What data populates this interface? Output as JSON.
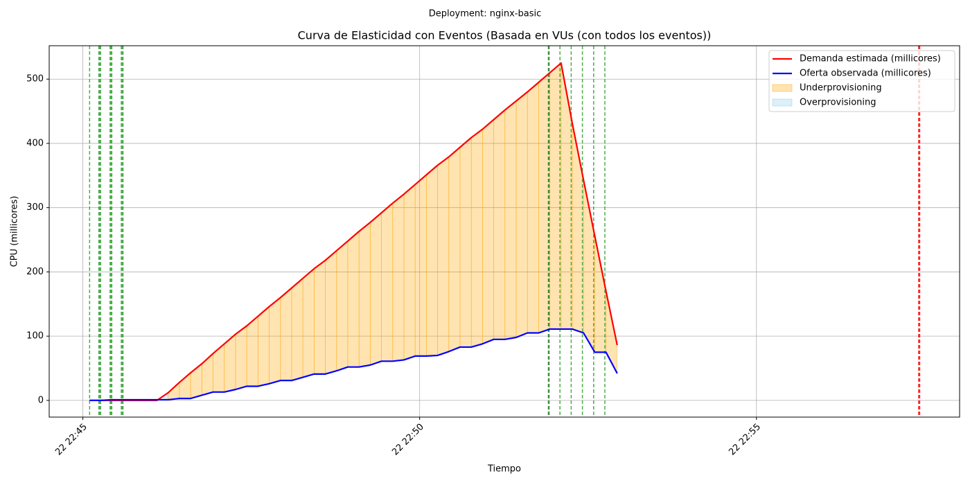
{
  "chart_data": {
    "type": "line",
    "suptitle": "Deployment: nginx-basic",
    "title": "Curva de Elasticidad con Eventos (Basada en VUs (con todos los eventos))",
    "xlabel": "Tiempo",
    "ylabel": "CPU (millicores)",
    "x": [
      "22:45:06",
      "22:45:16",
      "22:45:26",
      "22:45:36",
      "22:45:46",
      "22:45:56",
      "22:46:06",
      "22:46:16",
      "22:46:26",
      "22:46:36",
      "22:46:46",
      "22:46:56",
      "22:47:06",
      "22:47:16",
      "22:47:26",
      "22:47:36",
      "22:47:46",
      "22:47:56",
      "22:48:06",
      "22:48:16",
      "22:48:26",
      "22:48:36",
      "22:48:46",
      "22:48:56",
      "22:49:06",
      "22:49:16",
      "22:49:26",
      "22:49:36",
      "22:49:46",
      "22:49:56",
      "22:50:06",
      "22:50:16",
      "22:50:26",
      "22:50:36",
      "22:50:46",
      "22:50:56",
      "22:51:06",
      "22:51:16",
      "22:51:26",
      "22:51:36",
      "22:51:46",
      "22:51:56",
      "22:52:06",
      "22:52:16",
      "22:52:26",
      "22:52:36",
      "22:52:46",
      "22:52:56"
    ],
    "series": [
      {
        "name": "Demanda estimada (millicores)",
        "color": "#ff0000",
        "values": [
          0,
          0,
          0,
          0,
          0,
          0,
          0,
          12,
          28,
          43,
          57,
          73,
          88,
          103,
          116,
          131,
          146,
          160,
          175,
          190,
          205,
          218,
          233,
          248,
          263,
          277,
          292,
          307,
          321,
          336,
          351,
          366,
          379,
          394,
          409,
          422,
          437,
          452,
          466,
          480,
          495,
          510,
          525,
          431,
          343,
          256,
          170,
          86
        ]
      },
      {
        "name": "Oferta observada (millicores)",
        "color": "#0000ff",
        "values": [
          0,
          0,
          1,
          1,
          1,
          1,
          1,
          1,
          3,
          3,
          8,
          13,
          13,
          17,
          22,
          22,
          26,
          31,
          31,
          36,
          41,
          41,
          46,
          52,
          52,
          55,
          61,
          61,
          63,
          69,
          69,
          70,
          76,
          83,
          83,
          88,
          95,
          95,
          98,
          105,
          105,
          111,
          111,
          111,
          105,
          75,
          75,
          42
        ]
      }
    ],
    "fills": [
      {
        "name": "Underprovisioning",
        "color": "#ffa500"
      },
      {
        "name": "Overprovisioning",
        "color": "#87ceeb"
      }
    ],
    "events": [
      {
        "x": "22:45:06",
        "color": "#2ca02c",
        "width": 1.5
      },
      {
        "x": "22:45:15",
        "color": "#2ca02c",
        "width": 4
      },
      {
        "x": "22:45:25",
        "color": "#2ca02c",
        "width": 4
      },
      {
        "x": "22:45:35",
        "color": "#2ca02c",
        "width": 4
      },
      {
        "x": "22:51:55",
        "color": "#1a7a1a",
        "width": 2.5
      },
      {
        "x": "22:52:05",
        "color": "#2ca02c",
        "width": 1.5
      },
      {
        "x": "22:52:15",
        "color": "#2ca02c",
        "width": 1.5
      },
      {
        "x": "22:52:25",
        "color": "#2ca02c",
        "width": 1.5
      },
      {
        "x": "22:52:35",
        "color": "#2ca02c",
        "width": 1.5
      },
      {
        "x": "22:52:45",
        "color": "#2ca02c",
        "width": 1.5
      },
      {
        "x": "22:57:25",
        "color": "#ff0000",
        "width": 3
      }
    ],
    "xlim": [
      "22:44:30",
      "22:58:01"
    ],
    "xticks": [
      {
        "value": "22:45:00",
        "label": "22 22:45"
      },
      {
        "value": "22:50:00",
        "label": "22 22:50"
      },
      {
        "value": "22:55:00",
        "label": "22 22:55"
      }
    ],
    "ylim": [
      -26,
      552
    ],
    "yticks": [
      0,
      100,
      200,
      300,
      400,
      500
    ],
    "grid": true,
    "legend": "upper right"
  }
}
